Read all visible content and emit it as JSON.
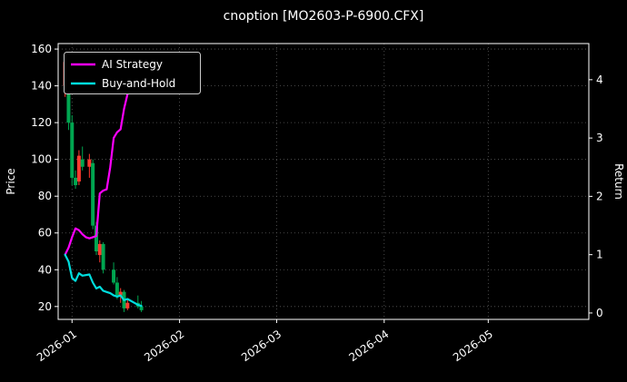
{
  "window": {
    "title": "cnoption [MO2603-P-6900.CFX]"
  },
  "colors": {
    "background": "#000000",
    "text": "#ffffff",
    "grid": "#5c5c5c",
    "spine": "#ffffff",
    "candle_up": "#ff3b30",
    "candle_down": "#00a650",
    "ai": "#ff00ff",
    "bh": "#00dddd",
    "legend_edge": "#cccccc"
  },
  "chart_data": {
    "type": "candlestick+line",
    "title": "cnoption [MO2603-P-6900.CFX]",
    "price_axis": {
      "label": "Price",
      "ticks": [
        20,
        40,
        60,
        80,
        100,
        120,
        140,
        160
      ],
      "ylim": [
        13,
        163
      ]
    },
    "return_axis": {
      "label": "Return",
      "ticks": [
        0,
        1,
        2,
        3,
        4
      ],
      "ylim": [
        -0.11,
        4.62
      ]
    },
    "x_axis": {
      "tick_labels": [
        "2026-01",
        "2026-02",
        "2026-03",
        "2026-04",
        "2026-05"
      ],
      "tick_days": [
        4,
        35,
        63,
        94,
        124
      ],
      "xlim_days": [
        0,
        153
      ]
    },
    "legend": [
      {
        "label": "AI Strategy",
        "color_key": "ai"
      },
      {
        "label": "Buy-and-Hold",
        "color_key": "bh"
      }
    ],
    "candles": [
      [
        2,
        140,
        158,
        134,
        153
      ],
      [
        3,
        150,
        152,
        116,
        120
      ],
      [
        4,
        120,
        124,
        86,
        90
      ],
      [
        5,
        90,
        94,
        84,
        86
      ],
      [
        6,
        88,
        105,
        86,
        102
      ],
      [
        7,
        100,
        107,
        94,
        96
      ],
      [
        9,
        96,
        103,
        90,
        100
      ],
      [
        10,
        98,
        100,
        62,
        64
      ],
      [
        11,
        64,
        66,
        48,
        50
      ],
      [
        12,
        48,
        56,
        44,
        54
      ],
      [
        13,
        54,
        55,
        38,
        40
      ],
      [
        16,
        40,
        44,
        32,
        33
      ],
      [
        17,
        33,
        36,
        24,
        26
      ],
      [
        18,
        26,
        30,
        22,
        28
      ],
      [
        19,
        28,
        29,
        17,
        19
      ],
      [
        20,
        19,
        24,
        18,
        22
      ],
      [
        23,
        22,
        26,
        19,
        20
      ],
      [
        24,
        20,
        23,
        17,
        18
      ]
    ],
    "series": [
      {
        "name": "AI Strategy",
        "axis": "return",
        "color_key": "ai",
        "points": [
          [
            2,
            1.0
          ],
          [
            3,
            1.12
          ],
          [
            4,
            1.3
          ],
          [
            5,
            1.45
          ],
          [
            6,
            1.42
          ],
          [
            7,
            1.35
          ],
          [
            8,
            1.3
          ],
          [
            9,
            1.28
          ],
          [
            10,
            1.3
          ],
          [
            11,
            1.32
          ],
          [
            12,
            2.05
          ],
          [
            13,
            2.1
          ],
          [
            14,
            2.12
          ],
          [
            15,
            2.5
          ],
          [
            16,
            3.0
          ],
          [
            17,
            3.1
          ],
          [
            18,
            3.15
          ],
          [
            19,
            3.5
          ],
          [
            20,
            3.75
          ],
          [
            21,
            3.9
          ]
        ]
      },
      {
        "name": "Buy-and-Hold",
        "axis": "return",
        "color_key": "bh",
        "points": [
          [
            2,
            1.0
          ],
          [
            3,
            0.88
          ],
          [
            4,
            0.6
          ],
          [
            5,
            0.55
          ],
          [
            6,
            0.68
          ],
          [
            7,
            0.64
          ],
          [
            9,
            0.66
          ],
          [
            10,
            0.52
          ],
          [
            11,
            0.42
          ],
          [
            12,
            0.45
          ],
          [
            13,
            0.38
          ],
          [
            14,
            0.36
          ],
          [
            15,
            0.34
          ],
          [
            16,
            0.3
          ],
          [
            17,
            0.28
          ],
          [
            18,
            0.3
          ],
          [
            19,
            0.22
          ],
          [
            20,
            0.24
          ],
          [
            23,
            0.14
          ],
          [
            24,
            0.12
          ]
        ]
      }
    ]
  }
}
